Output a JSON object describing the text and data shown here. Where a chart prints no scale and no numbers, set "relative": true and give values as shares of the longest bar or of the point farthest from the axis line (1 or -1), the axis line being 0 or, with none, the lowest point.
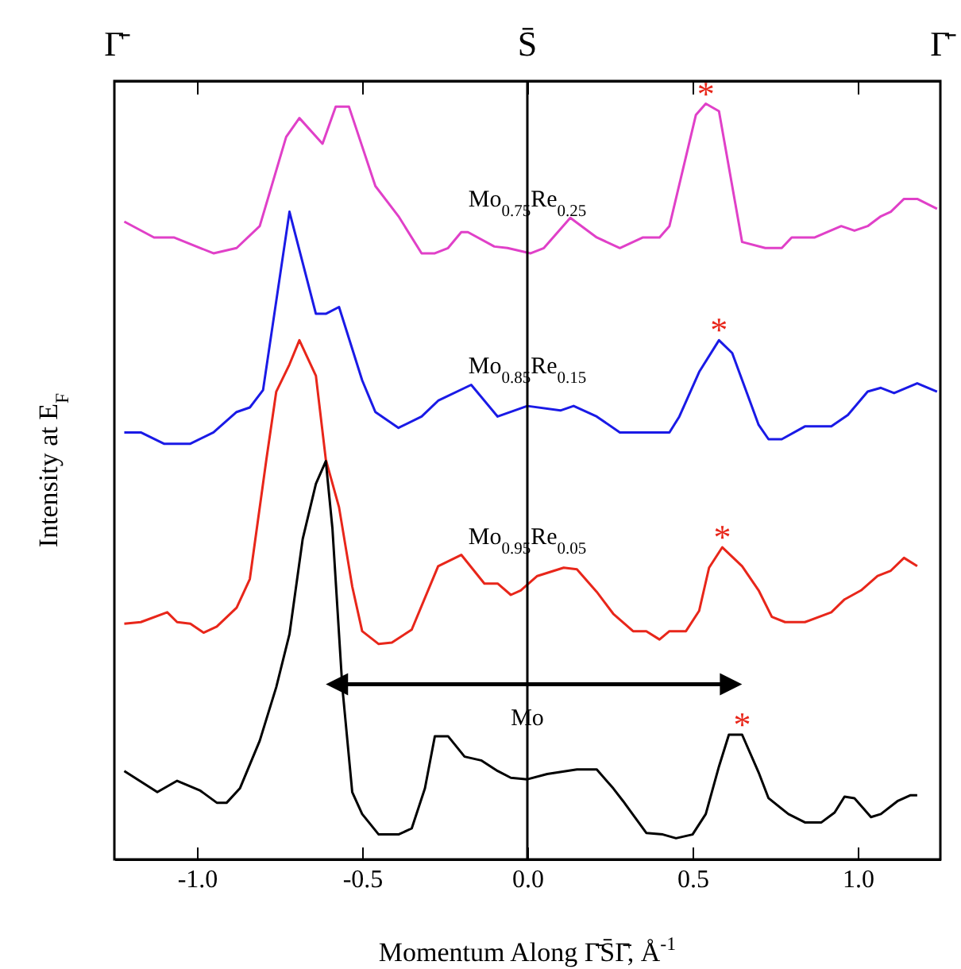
{
  "chart_data": {
    "type": "line",
    "xlabel": "Momentum Along Γ̄S̄Γ̄, Å$^{-1}$",
    "ylabel": "Intensity at E$_{F}$",
    "relative": true,
    "xlim": [
      -1.25,
      1.25
    ],
    "xticks": [
      {
        "value": -1,
        "label": "-1.0"
      },
      {
        "value": -0.5,
        "label": "-0.5"
      },
      {
        "value": 0,
        "label": "0.0"
      },
      {
        "value": 0.5,
        "label": "0.5"
      },
      {
        "value": 1,
        "label": "1.0"
      }
    ],
    "ref_lines": [
      {
        "axis": "x",
        "value": 0,
        "color": "#000000"
      }
    ],
    "annotations": [
      "Γ̄",
      "S̄",
      "Γ̄",
      {
        "text": "*",
        "x": 0.54,
        "y": 1.0
      },
      {
        "text": "*",
        "x": 0.58,
        "y": 0.687
      },
      {
        "text": "*",
        "x": 0.59,
        "y": 0.413
      },
      {
        "text": "*",
        "x": 0.65,
        "y": 0.165
      }
    ],
    "series": [
      {
        "name": "Mo$_{0.75}$Re$_{0.25}$",
        "color": "#e040c8",
        "x": [
          -1.22,
          -1.13,
          -1.07,
          -0.95,
          -0.88,
          -0.81,
          -0.73,
          -0.69,
          -0.62,
          -0.58,
          -0.54,
          -0.46,
          -0.39,
          -0.32,
          -0.28,
          -0.24,
          -0.2,
          -0.18,
          -0.1,
          -0.06,
          0.01,
          0.05,
          0.13,
          0.21,
          0.28,
          0.35,
          0.4,
          0.43,
          0.51,
          0.54,
          0.58,
          0.65,
          0.72,
          0.77,
          0.8,
          0.87,
          0.95,
          0.99,
          1.03,
          1.07,
          1.1,
          1.14,
          1.18,
          1.24
        ],
        "values": [
          0.844,
          0.823,
          0.823,
          0.802,
          0.809,
          0.838,
          0.956,
          0.981,
          0.947,
          0.996,
          0.996,
          0.891,
          0.851,
          0.802,
          0.802,
          0.809,
          0.83,
          0.83,
          0.811,
          0.809,
          0.802,
          0.809,
          0.849,
          0.823,
          0.809,
          0.823,
          0.823,
          0.838,
          0.985,
          1.0,
          0.99,
          0.817,
          0.809,
          0.809,
          0.823,
          0.823,
          0.838,
          0.832,
          0.838,
          0.851,
          0.857,
          0.874,
          0.874,
          0.861
        ]
      },
      {
        "name": "Mo$_{0.85}$Re$_{0.15}$",
        "color": "#1a1ae6",
        "x": [
          -1.22,
          -1.17,
          -1.1,
          -1.02,
          -0.95,
          -0.88,
          -0.84,
          -0.8,
          -0.72,
          -0.64,
          -0.61,
          -0.57,
          -0.5,
          -0.46,
          -0.39,
          -0.32,
          -0.27,
          -0.17,
          -0.09,
          0.0,
          0.1,
          0.14,
          0.21,
          0.28,
          0.43,
          0.46,
          0.52,
          0.58,
          0.62,
          0.7,
          0.73,
          0.77,
          0.84,
          0.92,
          0.97,
          1.03,
          1.07,
          1.11,
          1.18,
          1.24
        ],
        "values": [
          0.565,
          0.565,
          0.55,
          0.55,
          0.565,
          0.592,
          0.598,
          0.621,
          0.857,
          0.722,
          0.722,
          0.731,
          0.634,
          0.592,
          0.571,
          0.586,
          0.607,
          0.628,
          0.586,
          0.6,
          0.594,
          0.6,
          0.586,
          0.565,
          0.565,
          0.586,
          0.645,
          0.687,
          0.67,
          0.575,
          0.556,
          0.556,
          0.573,
          0.573,
          0.588,
          0.619,
          0.624,
          0.617,
          0.63,
          0.619
        ]
      },
      {
        "name": "Mo$_{0.95}$Re$_{0.05}$",
        "color": "#e8261a",
        "x": [
          -1.22,
          -1.17,
          -1.09,
          -1.06,
          -1.02,
          -0.98,
          -0.94,
          -0.88,
          -0.84,
          -0.79,
          -0.76,
          -0.72,
          -0.69,
          -0.64,
          -0.61,
          -0.57,
          -0.53,
          -0.5,
          -0.45,
          -0.41,
          -0.35,
          -0.27,
          -0.2,
          -0.13,
          -0.09,
          -0.05,
          -0.02,
          0.03,
          0.11,
          0.15,
          0.21,
          0.26,
          0.32,
          0.36,
          0.4,
          0.43,
          0.48,
          0.52,
          0.55,
          0.59,
          0.65,
          0.7,
          0.74,
          0.78,
          0.84,
          0.92,
          0.96,
          1.01,
          1.06,
          1.1,
          1.14,
          1.18
        ],
        "values": [
          0.312,
          0.314,
          0.327,
          0.314,
          0.312,
          0.3,
          0.308,
          0.333,
          0.371,
          0.529,
          0.619,
          0.655,
          0.687,
          0.64,
          0.529,
          0.466,
          0.361,
          0.302,
          0.285,
          0.287,
          0.304,
          0.388,
          0.403,
          0.365,
          0.365,
          0.35,
          0.356,
          0.375,
          0.386,
          0.384,
          0.354,
          0.325,
          0.302,
          0.302,
          0.291,
          0.302,
          0.302,
          0.329,
          0.386,
          0.413,
          0.388,
          0.356,
          0.321,
          0.314,
          0.314,
          0.327,
          0.344,
          0.356,
          0.375,
          0.382,
          0.399,
          0.388
        ]
      },
      {
        "name": "Mo",
        "color": "#000000",
        "x": [
          -1.22,
          -1.12,
          -1.06,
          -0.99,
          -0.94,
          -0.91,
          -0.87,
          -0.81,
          -0.76,
          -0.72,
          -0.68,
          -0.64,
          -0.61,
          -0.59,
          -0.56,
          -0.53,
          -0.5,
          -0.45,
          -0.39,
          -0.35,
          -0.31,
          -0.28,
          -0.24,
          -0.19,
          -0.14,
          -0.09,
          -0.05,
          0.0,
          0.06,
          0.15,
          0.21,
          0.26,
          0.29,
          0.36,
          0.41,
          0.45,
          0.5,
          0.54,
          0.58,
          0.61,
          0.65,
          0.7,
          0.73,
          0.79,
          0.84,
          0.89,
          0.93,
          0.96,
          0.99,
          1.04,
          1.07,
          1.12,
          1.16,
          1.18
        ],
        "values": [
          0.117,
          0.089,
          0.104,
          0.091,
          0.075,
          0.075,
          0.094,
          0.157,
          0.228,
          0.298,
          0.424,
          0.497,
          0.527,
          0.438,
          0.228,
          0.089,
          0.06,
          0.033,
          0.033,
          0.041,
          0.094,
          0.163,
          0.163,
          0.136,
          0.131,
          0.117,
          0.108,
          0.106,
          0.113,
          0.119,
          0.119,
          0.094,
          0.077,
          0.035,
          0.033,
          0.028,
          0.033,
          0.06,
          0.123,
          0.165,
          0.165,
          0.115,
          0.081,
          0.06,
          0.049,
          0.049,
          0.062,
          0.083,
          0.081,
          0.056,
          0.06,
          0.077,
          0.085,
          0.085
        ]
      }
    ]
  }
}
